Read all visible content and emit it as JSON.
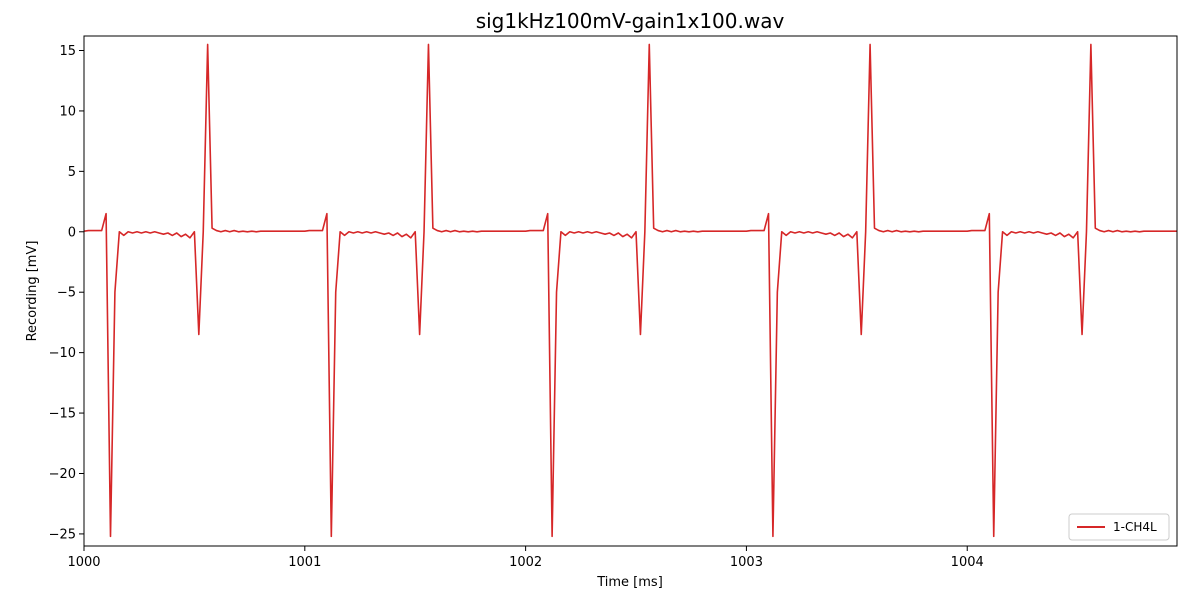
{
  "chart_data": {
    "type": "line",
    "title": "sig1kHz100mV-gain1x100.wav",
    "xlabel": "Time [ms]",
    "ylabel": "Recording [mV]",
    "xlim": [
      1000,
      1004.95
    ],
    "ylim": [
      -26,
      16.2
    ],
    "xticks": [
      1000,
      1001,
      1002,
      1003,
      1004
    ],
    "xtick_labels": [
      "1000",
      "1001",
      "1002",
      "1003",
      "1004"
    ],
    "yticks": [
      -25,
      -20,
      -15,
      -10,
      -5,
      0,
      5,
      10,
      15
    ],
    "ytick_labels": [
      "−25",
      "−20",
      "−15",
      "−10",
      "−5",
      "0",
      "5",
      "10",
      "15"
    ],
    "grid": false,
    "legend": {
      "position": "lower-right",
      "entries": [
        "1-CH4L"
      ]
    },
    "series": [
      {
        "name": "1-CH4L",
        "color": "#d62728",
        "period_ms": 1.0,
        "cycle": {
          "x_offset": [
            0.0,
            0.02,
            0.04,
            0.06,
            0.08,
            0.1,
            0.12,
            0.14,
            0.16,
            0.18,
            0.2,
            0.22,
            0.24,
            0.26,
            0.28,
            0.3,
            0.32,
            0.34,
            0.36,
            0.38,
            0.4,
            0.42,
            0.44,
            0.46,
            0.48,
            0.5,
            0.52,
            0.54,
            0.56,
            0.58,
            0.6,
            0.62,
            0.64,
            0.66,
            0.68,
            0.7,
            0.72,
            0.74,
            0.76,
            0.78,
            0.8,
            0.82,
            0.84,
            0.86,
            0.88,
            0.9,
            0.92,
            0.94,
            0.96,
            0.98
          ],
          "y": [
            0.0,
            0.1,
            0.0,
            0.1,
            0.0,
            0.05,
            0.0,
            0.05,
            0.0,
            0.05,
            0.05,
            0.05,
            0.05,
            0.05,
            0.05,
            0.05,
            0.05,
            0.05,
            0.05,
            0.05,
            0.1,
            0.1,
            0.1,
            0.1,
            1.5,
            -25.2,
            -5.0,
            0.0,
            -0.3,
            0.0,
            -0.1,
            0.0,
            -0.1,
            0.0,
            -0.1,
            0.0,
            -0.1,
            -0.2,
            -0.1,
            -0.3,
            -0.1,
            -0.4,
            -0.2,
            -0.5,
            0.0,
            -8.5,
            0.0,
            15.5,
            0.3,
            0.1
          ]
        },
        "x_start": 999.62,
        "num_cycles": 6
      }
    ]
  }
}
